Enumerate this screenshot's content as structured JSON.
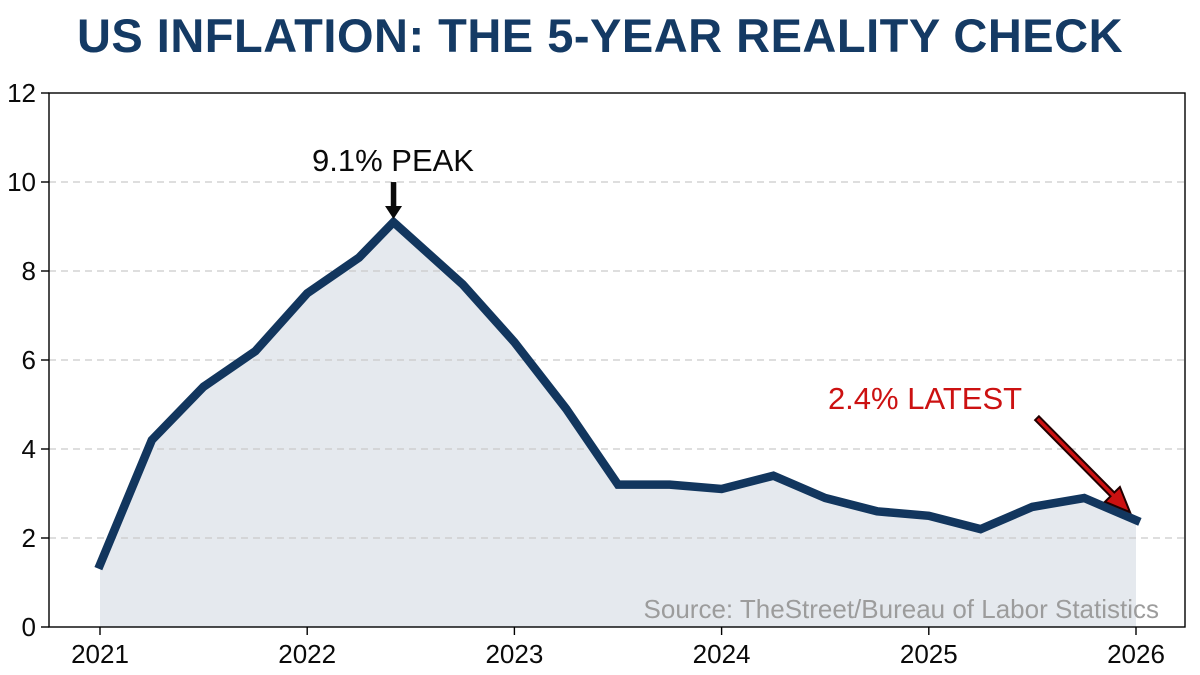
{
  "title": "US INFLATION: THE 5-YEAR REALITY CHECK",
  "source": "Source: TheStreet/Bureau of Labor Statistics",
  "colors": {
    "title": "#143a64",
    "line": "#12365e",
    "fill": "#e5e9ee",
    "grid": "#c9c9c9",
    "axis": "#000000",
    "tick_label": "#0a0a0a",
    "annotation_peak": "#0a0a0a",
    "annotation_latest": "#cc1111",
    "source_text": "#9c9c9c"
  },
  "chart_data": {
    "type": "area",
    "title": "US INFLATION: THE 5-YEAR REALITY CHECK",
    "xlabel": "",
    "ylabel": "",
    "x": [
      2021,
      2021.25,
      2021.5,
      2021.75,
      2022,
      2022.25,
      2022.4167,
      2022.75,
      2023,
      2023.25,
      2023.5,
      2023.75,
      2024,
      2024.25,
      2024.5,
      2024.75,
      2025,
      2025.25,
      2025.5,
      2025.75,
      2026
    ],
    "values": [
      1.4,
      4.2,
      5.4,
      6.2,
      7.5,
      8.3,
      9.1,
      7.7,
      6.4,
      4.9,
      3.2,
      3.2,
      3.1,
      3.4,
      2.9,
      2.6,
      2.5,
      2.2,
      2.7,
      2.9,
      2.4
    ],
    "x_ticks": [
      2021,
      2022,
      2023,
      2024,
      2025,
      2026
    ],
    "x_tick_labels": [
      "2021",
      "2022",
      "2023",
      "2024",
      "2025",
      "2026"
    ],
    "y_ticks": [
      0,
      2,
      4,
      6,
      8,
      10,
      12
    ],
    "y_tick_labels": [
      "0",
      "2",
      "4",
      "6",
      "8",
      "10",
      "12"
    ],
    "ylim": [
      0,
      12
    ],
    "x_range": [
      2021,
      2026
    ],
    "grid_y": [
      2,
      4,
      6,
      8,
      10
    ],
    "grid_style": "dashed",
    "legend": "none",
    "annotations": [
      {
        "text": "9.1% PEAK",
        "color": "#0a0a0a",
        "anchor_x": 2022.4167,
        "anchor_y": 9.1,
        "arrow": "down"
      },
      {
        "text": "2.4% LATEST",
        "color": "#cc1111",
        "anchor_x": 2026,
        "anchor_y": 2.4,
        "arrow": "down-right"
      }
    ]
  }
}
